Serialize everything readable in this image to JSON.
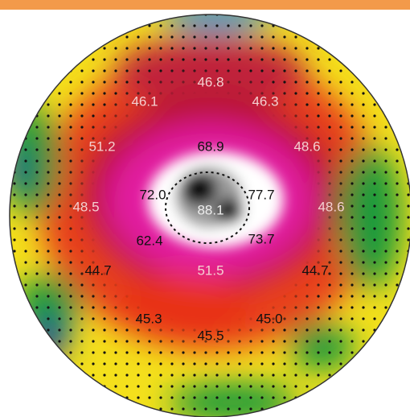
{
  "labels": [
    "46.8",
    "46.1",
    "46.3",
    "51.2",
    "68.9",
    "48.6",
    "72.0",
    "77.7",
    "88.1",
    "48.5",
    "48.6",
    "62.4",
    "73.7",
    "44.7",
    "51.5",
    "44.7",
    "45.3",
    "45.0",
    "45.5"
  ]
}
